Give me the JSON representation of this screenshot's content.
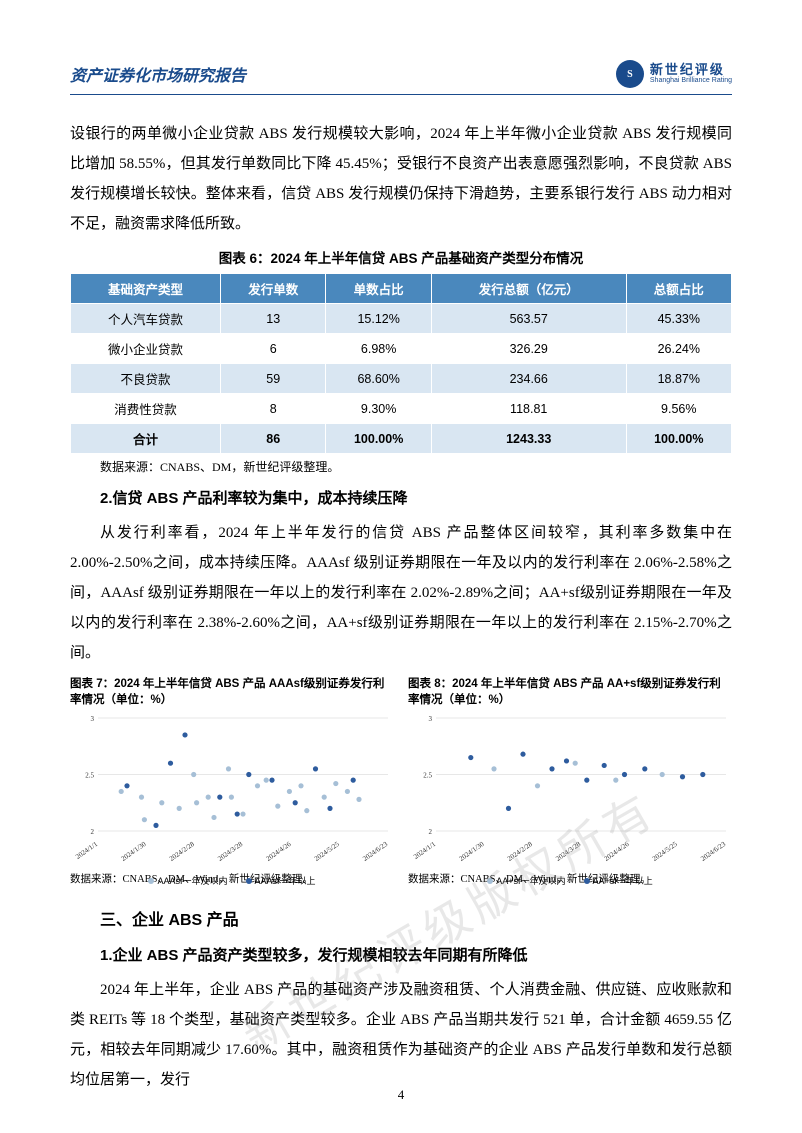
{
  "header": {
    "title": "资产证券化市场研究报告",
    "logo_cn": "新世纪评级",
    "logo_en": "Shanghai Brilliance Rating",
    "logo_badge": "S"
  },
  "para1": "设银行的两单微小企业贷款 ABS 发行规模较大影响，2024 年上半年微小企业贷款 ABS 发行规模同比增加 58.55%，但其发行单数同比下降 45.45%；受银行不良资产出表意愿强烈影响，不良贷款 ABS 发行规模增长较快。整体来看，信贷 ABS 发行规模仍保持下滑趋势，主要系银行发行 ABS 动力相对不足，融资需求降低所致。",
  "table6": {
    "title": "图表 6：2024 年上半年信贷 ABS 产品基础资产类型分布情况",
    "header_bg": "#4a88bd",
    "even_bg": "#d9e6f2",
    "columns": [
      "基础资产类型",
      "发行单数",
      "单数占比",
      "发行总额（亿元）",
      "总额占比"
    ],
    "rows": [
      [
        "个人汽车贷款",
        "13",
        "15.12%",
        "563.57",
        "45.33%"
      ],
      [
        "微小企业贷款",
        "6",
        "6.98%",
        "326.29",
        "26.24%"
      ],
      [
        "不良贷款",
        "59",
        "68.60%",
        "234.66",
        "18.87%"
      ],
      [
        "消费性贷款",
        "8",
        "9.30%",
        "118.81",
        "9.56%"
      ],
      [
        "合计",
        "86",
        "100.00%",
        "1243.33",
        "100.00%"
      ]
    ],
    "source": "数据来源：CNABS、DM，新世纪评级整理。"
  },
  "subsection2": "2.信贷 ABS 产品利率较为集中，成本持续压降",
  "para2": "从发行利率看，2024 年上半年发行的信贷 ABS 产品整体区间较窄，其利率多数集中在 2.00%-2.50%之间，成本持续压降。AAAsf 级别证券期限在一年及以内的发行利率在 2.06%-2.58%之间，AAAsf 级别证券期限在一年以上的发行利率在 2.02%-2.89%之间；AA+sf级别证券期限在一年及以内的发行利率在 2.38%-2.60%之间，AA+sf级别证券期限在一年以上的发行利率在 2.15%-2.70%之间。",
  "chart7": {
    "caption": "图表 7：2024 年上半年信贷 ABS 产品 AAAsf级别证券发行利率情况（单位：%）",
    "type": "scatter",
    "ylim": [
      2,
      3
    ],
    "ytick_step": 0.5,
    "xlabels": [
      "2024/1/1",
      "2024/1/30",
      "2024/2/28",
      "2024/3/28",
      "2024/4/26",
      "2024/5/25",
      "2024/6/23"
    ],
    "series": [
      {
        "name": "AAAsf一年及以内",
        "color": "#a6bfd6",
        "points": [
          [
            8,
            2.35
          ],
          [
            15,
            2.3
          ],
          [
            16,
            2.1
          ],
          [
            22,
            2.25
          ],
          [
            28,
            2.2
          ],
          [
            33,
            2.5
          ],
          [
            34,
            2.25
          ],
          [
            38,
            2.3
          ],
          [
            40,
            2.12
          ],
          [
            45,
            2.55
          ],
          [
            46,
            2.3
          ],
          [
            50,
            2.15
          ],
          [
            55,
            2.4
          ],
          [
            58,
            2.45
          ],
          [
            62,
            2.22
          ],
          [
            66,
            2.35
          ],
          [
            70,
            2.4
          ],
          [
            72,
            2.18
          ],
          [
            78,
            2.3
          ],
          [
            82,
            2.42
          ],
          [
            86,
            2.35
          ],
          [
            90,
            2.28
          ]
        ]
      },
      {
        "name": "AAAsf一年以上",
        "color": "#2e5c9e",
        "points": [
          [
            10,
            2.4
          ],
          [
            20,
            2.05
          ],
          [
            25,
            2.6
          ],
          [
            30,
            2.85
          ],
          [
            42,
            2.3
          ],
          [
            48,
            2.15
          ],
          [
            52,
            2.5
          ],
          [
            60,
            2.45
          ],
          [
            68,
            2.25
          ],
          [
            75,
            2.55
          ],
          [
            80,
            2.2
          ],
          [
            88,
            2.45
          ]
        ]
      }
    ],
    "grid_color": "#d0d0d0",
    "background_color": "#ffffff",
    "axis_fontsize": 7,
    "source": "数据来源：CNABS、DM、Wind，新世纪评级整理。"
  },
  "chart8": {
    "caption": "图表 8：2024 年上半年信贷 ABS 产品 AA+sf级别证券发行利率情况（单位：%）",
    "type": "scatter",
    "ylim": [
      2,
      3
    ],
    "ytick_step": 0.5,
    "xlabels": [
      "2024/1/1",
      "2024/1/30",
      "2024/2/28",
      "2024/3/28",
      "2024/4/26",
      "2024/5/25",
      "2024/6/23"
    ],
    "series": [
      {
        "name": "AA+sf一年及以内",
        "color": "#a6bfd6",
        "points": [
          [
            20,
            2.55
          ],
          [
            35,
            2.4
          ],
          [
            48,
            2.6
          ],
          [
            62,
            2.45
          ],
          [
            78,
            2.5
          ]
        ]
      },
      {
        "name": "AA+sf一年以上",
        "color": "#2e5c9e",
        "points": [
          [
            12,
            2.65
          ],
          [
            25,
            2.2
          ],
          [
            30,
            2.68
          ],
          [
            40,
            2.55
          ],
          [
            45,
            2.62
          ],
          [
            52,
            2.45
          ],
          [
            58,
            2.58
          ],
          [
            65,
            2.5
          ],
          [
            72,
            2.55
          ],
          [
            85,
            2.48
          ],
          [
            92,
            2.5
          ]
        ]
      }
    ],
    "grid_color": "#d0d0d0",
    "background_color": "#ffffff",
    "axis_fontsize": 7,
    "source": "数据来源：CNABS、DM、Wind，新世纪评级整理。"
  },
  "section3": "三、企业 ABS 产品",
  "subsection3_1": "1.企业 ABS 产品资产类型较多，发行规模相较去年同期有所降低",
  "para3": "2024 年上半年，企业 ABS 产品的基础资产涉及融资租赁、个人消费金融、供应链、应收账款和类 REITs 等 18 个类型，基础资产类型较多。企业 ABS 产品当期共发行 521 单，合计金额 4659.55 亿元，相较去年同期减少 17.60%。其中，融资租赁作为基础资产的企业 ABS 产品发行单数和发行总额均位居第一，发行",
  "watermark": "新世纪评级版权所有",
  "page_number": "4"
}
